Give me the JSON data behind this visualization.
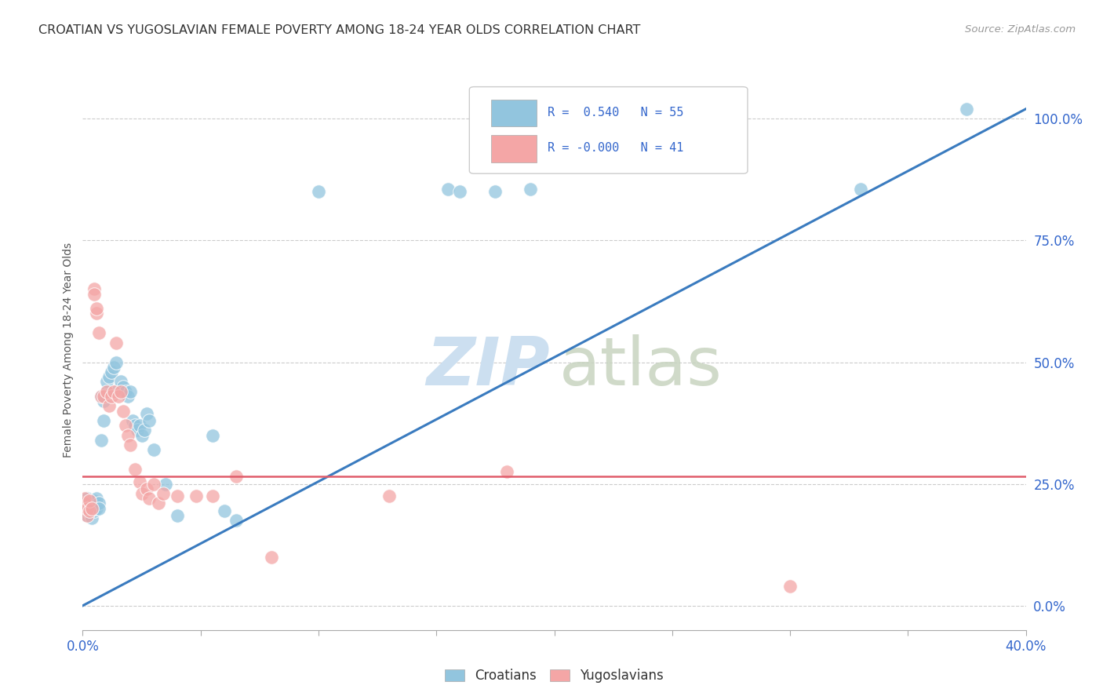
{
  "title": "CROATIAN VS YUGOSLAVIAN FEMALE POVERTY AMONG 18-24 YEAR OLDS CORRELATION CHART",
  "source": "Source: ZipAtlas.com",
  "ylabel": "Female Poverty Among 18-24 Year Olds",
  "xlim": [
    0.0,
    0.4
  ],
  "ylim": [
    -0.05,
    1.1
  ],
  "yticks": [
    0.0,
    0.25,
    0.5,
    0.75,
    1.0
  ],
  "right_ytick_labels": [
    "0.0%",
    "25.0%",
    "50.0%",
    "75.0%",
    "100.0%"
  ],
  "legend_r_croatian": "R =  0.540",
  "legend_n_croatian": "N = 55",
  "legend_r_yugoslav": "R = -0.000",
  "legend_n_yugoslav": "N = 41",
  "croatian_color": "#92c5de",
  "yugoslav_color": "#f4a6a6",
  "trend_croatian_color": "#3a7bbf",
  "trend_yugoslav_color": "#e05c6a",
  "watermark_zip_color": "#ccdff0",
  "watermark_atlas_color": "#c8d4c0",
  "background_color": "#ffffff",
  "croatian_trend_x": [
    0.0,
    0.4
  ],
  "croatian_trend_y": [
    0.0,
    1.02
  ],
  "yugoslav_trend_x": [
    0.0,
    0.4
  ],
  "yugoslav_trend_y": [
    0.265,
    0.265
  ],
  "croatian_x": [
    0.001,
    0.001,
    0.002,
    0.002,
    0.002,
    0.003,
    0.003,
    0.003,
    0.004,
    0.004,
    0.004,
    0.005,
    0.005,
    0.005,
    0.006,
    0.006,
    0.007,
    0.007,
    0.008,
    0.008,
    0.009,
    0.009,
    0.01,
    0.01,
    0.011,
    0.012,
    0.013,
    0.014,
    0.015,
    0.016,
    0.017,
    0.018,
    0.019,
    0.02,
    0.021,
    0.022,
    0.023,
    0.024,
    0.025,
    0.026,
    0.027,
    0.028,
    0.03,
    0.035,
    0.04,
    0.055,
    0.06,
    0.065,
    0.1,
    0.155,
    0.16,
    0.175,
    0.19,
    0.33,
    0.375
  ],
  "croatian_y": [
    0.195,
    0.21,
    0.2,
    0.185,
    0.22,
    0.19,
    0.21,
    0.195,
    0.18,
    0.2,
    0.215,
    0.195,
    0.205,
    0.215,
    0.2,
    0.22,
    0.21,
    0.2,
    0.34,
    0.43,
    0.38,
    0.42,
    0.44,
    0.46,
    0.47,
    0.48,
    0.49,
    0.5,
    0.445,
    0.46,
    0.45,
    0.44,
    0.43,
    0.44,
    0.38,
    0.37,
    0.36,
    0.37,
    0.35,
    0.36,
    0.395,
    0.38,
    0.32,
    0.25,
    0.185,
    0.35,
    0.195,
    0.175,
    0.85,
    0.855,
    0.85,
    0.85,
    0.855,
    0.855,
    1.02
  ],
  "yugoslav_x": [
    0.001,
    0.001,
    0.002,
    0.002,
    0.003,
    0.003,
    0.004,
    0.005,
    0.005,
    0.006,
    0.006,
    0.007,
    0.008,
    0.009,
    0.01,
    0.011,
    0.012,
    0.013,
    0.014,
    0.015,
    0.016,
    0.017,
    0.018,
    0.019,
    0.02,
    0.022,
    0.024,
    0.025,
    0.027,
    0.028,
    0.03,
    0.032,
    0.034,
    0.04,
    0.048,
    0.055,
    0.065,
    0.08,
    0.13,
    0.18,
    0.3
  ],
  "yugoslav_y": [
    0.21,
    0.22,
    0.185,
    0.2,
    0.195,
    0.215,
    0.2,
    0.65,
    0.64,
    0.6,
    0.61,
    0.56,
    0.43,
    0.43,
    0.44,
    0.41,
    0.43,
    0.44,
    0.54,
    0.43,
    0.44,
    0.4,
    0.37,
    0.35,
    0.33,
    0.28,
    0.255,
    0.23,
    0.24,
    0.22,
    0.25,
    0.21,
    0.23,
    0.225,
    0.225,
    0.225,
    0.265,
    0.1,
    0.225,
    0.275,
    0.04
  ]
}
